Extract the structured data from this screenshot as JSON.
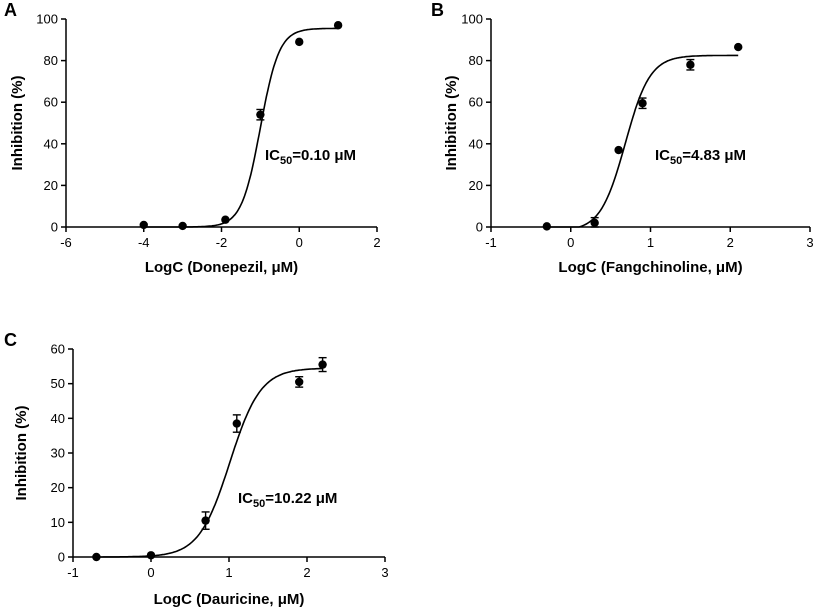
{
  "chart_data": [
    {
      "panel": "A",
      "type": "scatter",
      "xlabel": "LogC (Donepezil, μM)",
      "ylabel": "Inhibition (%)",
      "xlim": [
        -6,
        2
      ],
      "ylim": [
        0,
        100
      ],
      "xticks": [
        -6,
        -4,
        -2,
        0,
        2
      ],
      "yticks": [
        0,
        20,
        40,
        60,
        80,
        100
      ],
      "points": [
        {
          "x": -4.0,
          "y": 1.0,
          "err": 0
        },
        {
          "x": -3.0,
          "y": 0.5,
          "err": 0
        },
        {
          "x": -1.9,
          "y": 3.5,
          "err": 0
        },
        {
          "x": -1.0,
          "y": 54.0,
          "err": 2.5
        },
        {
          "x": 0.0,
          "y": 89.0,
          "err": 0
        },
        {
          "x": 1.0,
          "y": 97.0,
          "err": 0
        }
      ],
      "fit": {
        "bottom": 0,
        "top": 95.5,
        "logIC50": -1.0,
        "hill": 1.8
      },
      "annotation": {
        "main": "IC",
        "sub": "50",
        "rest": "=0.10 μM"
      }
    },
    {
      "panel": "B",
      "type": "scatter",
      "xlabel": "LogC (Fangchinoline, μM)",
      "ylabel": "Inhibition (%)",
      "xlim": [
        -1,
        3
      ],
      "ylim": [
        0,
        100
      ],
      "xticks": [
        -1,
        0,
        1,
        2,
        3
      ],
      "yticks": [
        0,
        20,
        40,
        60,
        80,
        100
      ],
      "points": [
        {
          "x": -0.3,
          "y": 0.3,
          "err": 0
        },
        {
          "x": 0.3,
          "y": 2.0,
          "err": 2.5
        },
        {
          "x": 0.6,
          "y": 37.0,
          "err": 0
        },
        {
          "x": 0.9,
          "y": 59.5,
          "err": 2.5
        },
        {
          "x": 1.5,
          "y": 78.0,
          "err": 2.5
        },
        {
          "x": 2.1,
          "y": 86.5,
          "err": 0
        }
      ],
      "fit": {
        "bottom": -2,
        "top": 82.5,
        "logIC50": 0.684,
        "hill": 2.8
      },
      "annotation": {
        "main": "IC",
        "sub": "50",
        "rest": "=4.83 μM"
      }
    },
    {
      "panel": "C",
      "type": "scatter",
      "xlabel": "LogC (Dauricine, μM)",
      "ylabel": "Inhibition (%)",
      "xlim": [
        -1,
        3
      ],
      "ylim": [
        0,
        60
      ],
      "xticks": [
        -1,
        0,
        1,
        2,
        3
      ],
      "yticks": [
        0,
        10,
        20,
        30,
        40,
        50,
        60
      ],
      "points": [
        {
          "x": -0.7,
          "y": 0.0,
          "err": 0
        },
        {
          "x": 0.0,
          "y": 0.5,
          "err": 0
        },
        {
          "x": 0.7,
          "y": 10.5,
          "err": 2.5
        },
        {
          "x": 1.1,
          "y": 38.5,
          "err": 2.5
        },
        {
          "x": 1.9,
          "y": 50.5,
          "err": 1.5
        },
        {
          "x": 2.2,
          "y": 55.5,
          "err": 2.0
        }
      ],
      "fit": {
        "bottom": 0,
        "top": 54.5,
        "logIC50": 1.01,
        "hill": 2.2
      },
      "annotation": {
        "main": "IC",
        "sub": "50",
        "rest": "=10.22 μM"
      }
    }
  ]
}
